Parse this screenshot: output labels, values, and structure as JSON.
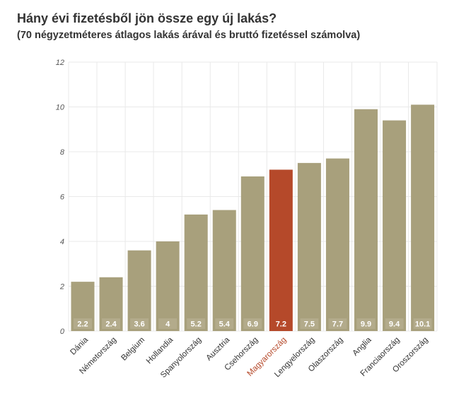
{
  "title": "Hány évi fizetésből jön össze egy új lakás?",
  "subtitle": "(70 négyzetméteres átlagos lakás árával és bruttó fizetéssel számolva)",
  "colors": {
    "bar": "#a8a07c",
    "highlight": "#b5492a",
    "grid": "#e9e9e9",
    "data_label_bg": "#bcb597"
  },
  "chart_data": {
    "type": "bar",
    "title": "Hány évi fizetésből jön össze egy új lakás?",
    "subtitle": "(70 négyzetméteres átlagos lakás árával és bruttó fizetéssel számolva)",
    "xlabel": "",
    "ylabel": "",
    "categories": [
      "Dánia",
      "Németország",
      "Belgium",
      "Hollandia",
      "Spanyolország",
      "Ausztria",
      "Csehország",
      "Magyarország",
      "Lengyelország",
      "Olaszország",
      "Anglia",
      "Franciaország",
      "Oroszország"
    ],
    "values": [
      2.2,
      2.4,
      3.6,
      4,
      5.2,
      5.4,
      6.9,
      7.2,
      7.5,
      7.7,
      9.9,
      9.4,
      10.1
    ],
    "value_labels": [
      "2.2",
      "2.4",
      "3.6",
      "4",
      "5.2",
      "5.4",
      "6.9",
      "7.2",
      "7.5",
      "7.7",
      "9.9",
      "9.4",
      "10.1"
    ],
    "highlight_category": "Magyarország",
    "ylim": [
      0,
      12
    ],
    "yticks": [
      0,
      2,
      4,
      6,
      8,
      10,
      12
    ],
    "grid": true,
    "legend": "none"
  }
}
